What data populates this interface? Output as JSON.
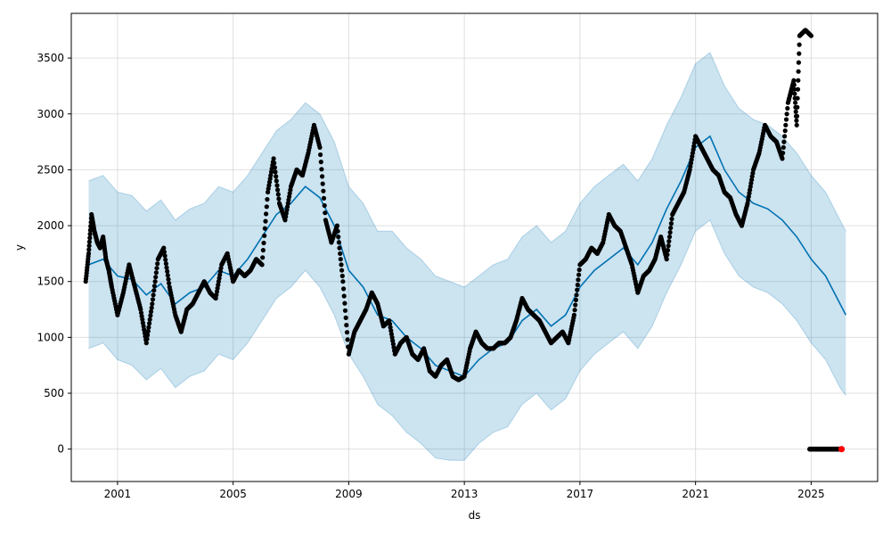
{
  "chart_data": {
    "type": "line",
    "title": "",
    "xlabel": "ds",
    "ylabel": "y",
    "xlim": [
      1999.4,
      2027.3
    ],
    "ylim": [
      -290,
      3900
    ],
    "grid": true,
    "x_ticks": [
      2001,
      2005,
      2009,
      2013,
      2017,
      2021,
      2025
    ],
    "y_ticks": [
      0,
      500,
      1000,
      1500,
      2000,
      2500,
      3000,
      3500
    ],
    "colors": {
      "forecast_line": "#0072B2",
      "uncertainty_band": "#0072B2",
      "observations": "#000000",
      "highlight": "#ff0000",
      "grid": "#cccccc"
    },
    "forecast": {
      "x": [
        2000.0,
        2000.5,
        2001.0,
        2001.5,
        2002.0,
        2002.5,
        2003.0,
        2003.5,
        2004.0,
        2004.5,
        2005.0,
        2005.5,
        2006.0,
        2006.5,
        2007.0,
        2007.5,
        2008.0,
        2008.5,
        2009.0,
        2009.5,
        2010.0,
        2010.5,
        2011.0,
        2011.5,
        2012.0,
        2012.5,
        2013.0,
        2013.5,
        2014.0,
        2014.5,
        2015.0,
        2015.5,
        2016.0,
        2016.5,
        2017.0,
        2017.5,
        2018.0,
        2018.5,
        2019.0,
        2019.5,
        2020.0,
        2020.5,
        2021.0,
        2021.5,
        2022.0,
        2022.5,
        2023.0,
        2023.5,
        2024.0,
        2024.5,
        2025.0,
        2025.5,
        2026.0,
        2026.2
      ],
      "yhat": [
        1650,
        1700,
        1550,
        1520,
        1380,
        1480,
        1300,
        1400,
        1450,
        1600,
        1550,
        1700,
        1900,
        2100,
        2200,
        2350,
        2250,
        2000,
        1600,
        1450,
        1200,
        1150,
        1000,
        900,
        750,
        700,
        650,
        800,
        900,
        950,
        1150,
        1250,
        1100,
        1200,
        1450,
        1600,
        1700,
        1800,
        1650,
        1850,
        2150,
        2400,
        2700,
        2800,
        2500,
        2300,
        2200,
        2150,
        2050,
        1900,
        1700,
        1550,
        1300,
        1200
      ],
      "yhat_lower": [
        900,
        950,
        800,
        750,
        620,
        720,
        550,
        650,
        700,
        850,
        800,
        950,
        1150,
        1350,
        1450,
        1600,
        1450,
        1200,
        850,
        650,
        400,
        300,
        150,
        50,
        -80,
        -100,
        -100,
        50,
        150,
        200,
        400,
        500,
        350,
        450,
        700,
        850,
        950,
        1050,
        900,
        1100,
        1400,
        1650,
        1950,
        2050,
        1750,
        1550,
        1450,
        1400,
        1300,
        1150,
        950,
        800,
        550,
        480
      ],
      "yhat_upper": [
        2400,
        2450,
        2300,
        2270,
        2130,
        2230,
        2050,
        2150,
        2200,
        2350,
        2300,
        2450,
        2650,
        2850,
        2950,
        3100,
        3000,
        2750,
        2350,
        2200,
        1950,
        1950,
        1800,
        1700,
        1550,
        1500,
        1450,
        1550,
        1650,
        1700,
        1900,
        2000,
        1850,
        1950,
        2200,
        2350,
        2450,
        2550,
        2400,
        2600,
        2900,
        3150,
        3450,
        3550,
        3250,
        3050,
        2950,
        2900,
        2800,
        2650,
        2450,
        2300,
        2050,
        1950
      ]
    },
    "observations": {
      "x": [
        1999.9,
        2000.0,
        2000.1,
        2000.2,
        2000.3,
        2000.4,
        2000.5,
        2000.6,
        2000.7,
        2000.8,
        2001.0,
        2001.2,
        2001.4,
        2001.6,
        2001.8,
        2002.0,
        2002.2,
        2002.4,
        2002.6,
        2002.8,
        2003.0,
        2003.2,
        2003.4,
        2003.6,
        2003.8,
        2004.0,
        2004.2,
        2004.4,
        2004.6,
        2004.8,
        2005.0,
        2005.2,
        2005.4,
        2005.6,
        2005.8,
        2006.0,
        2006.2,
        2006.4,
        2006.6,
        2006.8,
        2007.0,
        2007.2,
        2007.4,
        2007.6,
        2007.8,
        2008.0,
        2008.2,
        2008.4,
        2008.6,
        2008.8,
        2009.0,
        2009.2,
        2009.4,
        2009.6,
        2009.8,
        2010.0,
        2010.2,
        2010.4,
        2010.6,
        2010.8,
        2011.0,
        2011.2,
        2011.4,
        2011.6,
        2011.8,
        2012.0,
        2012.2,
        2012.4,
        2012.6,
        2012.8,
        2013.0,
        2013.2,
        2013.4,
        2013.6,
        2013.8,
        2014.0,
        2014.2,
        2014.4,
        2014.6,
        2014.8,
        2015.0,
        2015.2,
        2015.4,
        2015.6,
        2015.8,
        2016.0,
        2016.2,
        2016.4,
        2016.6,
        2016.8,
        2017.0,
        2017.2,
        2017.4,
        2017.6,
        2017.8,
        2018.0,
        2018.2,
        2018.4,
        2018.6,
        2018.8,
        2019.0,
        2019.2,
        2019.4,
        2019.6,
        2019.8,
        2020.0,
        2020.2,
        2020.4,
        2020.6,
        2020.8,
        2021.0,
        2021.2,
        2021.4,
        2021.6,
        2021.8,
        2022.0,
        2022.2,
        2022.4,
        2022.6,
        2022.8,
        2023.0,
        2023.2,
        2023.4,
        2023.6,
        2023.8,
        2024.0,
        2024.2,
        2024.4,
        2024.5,
        2024.6,
        2024.8,
        2025.0
      ],
      "y": [
        1500,
        1750,
        2100,
        1950,
        1850,
        1800,
        1900,
        1700,
        1600,
        1450,
        1200,
        1400,
        1650,
        1450,
        1250,
        950,
        1300,
        1700,
        1800,
        1450,
        1200,
        1050,
        1250,
        1300,
        1400,
        1500,
        1400,
        1350,
        1650,
        1750,
        1500,
        1600,
        1550,
        1600,
        1700,
        1650,
        2300,
        2600,
        2200,
        2050,
        2350,
        2500,
        2450,
        2650,
        2900,
        2700,
        2050,
        1850,
        2000,
        1500,
        850,
        1050,
        1150,
        1250,
        1400,
        1300,
        1100,
        1150,
        850,
        950,
        1000,
        850,
        800,
        900,
        700,
        650,
        750,
        800,
        650,
        620,
        650,
        900,
        1050,
        950,
        900,
        900,
        950,
        950,
        1000,
        1150,
        1350,
        1250,
        1200,
        1150,
        1050,
        950,
        1000,
        1050,
        950,
        1200,
        1650,
        1700,
        1800,
        1750,
        1850,
        2100,
        2000,
        1950,
        1800,
        1650,
        1400,
        1550,
        1600,
        1700,
        1900,
        1700,
        2100,
        2200,
        2300,
        2500,
        2800,
        2700,
        2600,
        2500,
        2450,
        2300,
        2250,
        2100,
        2000,
        2200,
        2500,
        2650,
        2900,
        2800,
        2750,
        2600,
        3100,
        3300,
        2900,
        3700,
        3750,
        3700
      ],
      "color": "#000000"
    },
    "future_observations": {
      "x_start": 2024.95,
      "x_end": 2026.0,
      "y": 0,
      "color": "#000000",
      "highlight_x": 2026.05,
      "highlight_color": "#ff0000"
    }
  }
}
